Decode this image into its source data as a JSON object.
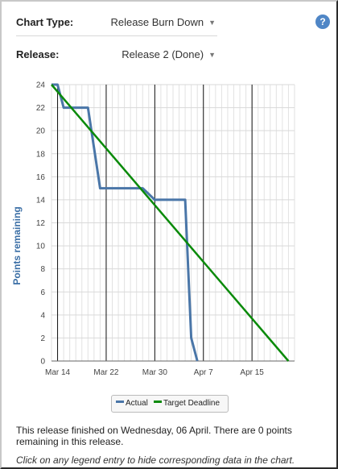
{
  "controls": {
    "chart_type_label": "Chart Type:",
    "chart_type_value": "Release Burn Down",
    "release_label": "Release:",
    "release_value": "Release 2 (Done)",
    "help_icon_text": "?"
  },
  "summary": "This release finished on Wednesday, 06 April. There are 0 points remaining in this release.",
  "hint": "Click on any legend entry to hide corresponding data in the chart.",
  "colors": {
    "actual": "#4a76a8",
    "target": "#0a8a0a",
    "help": "#4f86c6"
  },
  "chart_data": {
    "type": "line",
    "ylabel": "Points remaining",
    "ylim": [
      0,
      24
    ],
    "yticks": [
      0,
      2,
      4,
      6,
      8,
      10,
      12,
      14,
      16,
      18,
      20,
      22,
      24
    ],
    "xlim": [
      "2016-03-13",
      "2016-04-22"
    ],
    "xticks": [
      {
        "date": "2016-03-14",
        "label": "Mar 14"
      },
      {
        "date": "2016-03-22",
        "label": "Mar 22"
      },
      {
        "date": "2016-03-30",
        "label": "Mar 30"
      },
      {
        "date": "2016-04-07",
        "label": "Apr 7"
      },
      {
        "date": "2016-04-15",
        "label": "Apr 15"
      }
    ],
    "series": [
      {
        "name": "Actual",
        "points": [
          [
            "2016-03-13",
            24
          ],
          [
            "2016-03-14",
            24
          ],
          [
            "2016-03-15",
            22
          ],
          [
            "2016-03-19",
            22
          ],
          [
            "2016-03-21",
            15
          ],
          [
            "2016-03-28",
            15
          ],
          [
            "2016-03-30",
            14
          ],
          [
            "2016-04-04",
            14
          ],
          [
            "2016-04-05",
            2
          ],
          [
            "2016-04-06",
            0
          ]
        ]
      },
      {
        "name": "Target Deadline",
        "points": [
          [
            "2016-03-13",
            24
          ],
          [
            "2016-04-21",
            0
          ]
        ]
      }
    ]
  }
}
